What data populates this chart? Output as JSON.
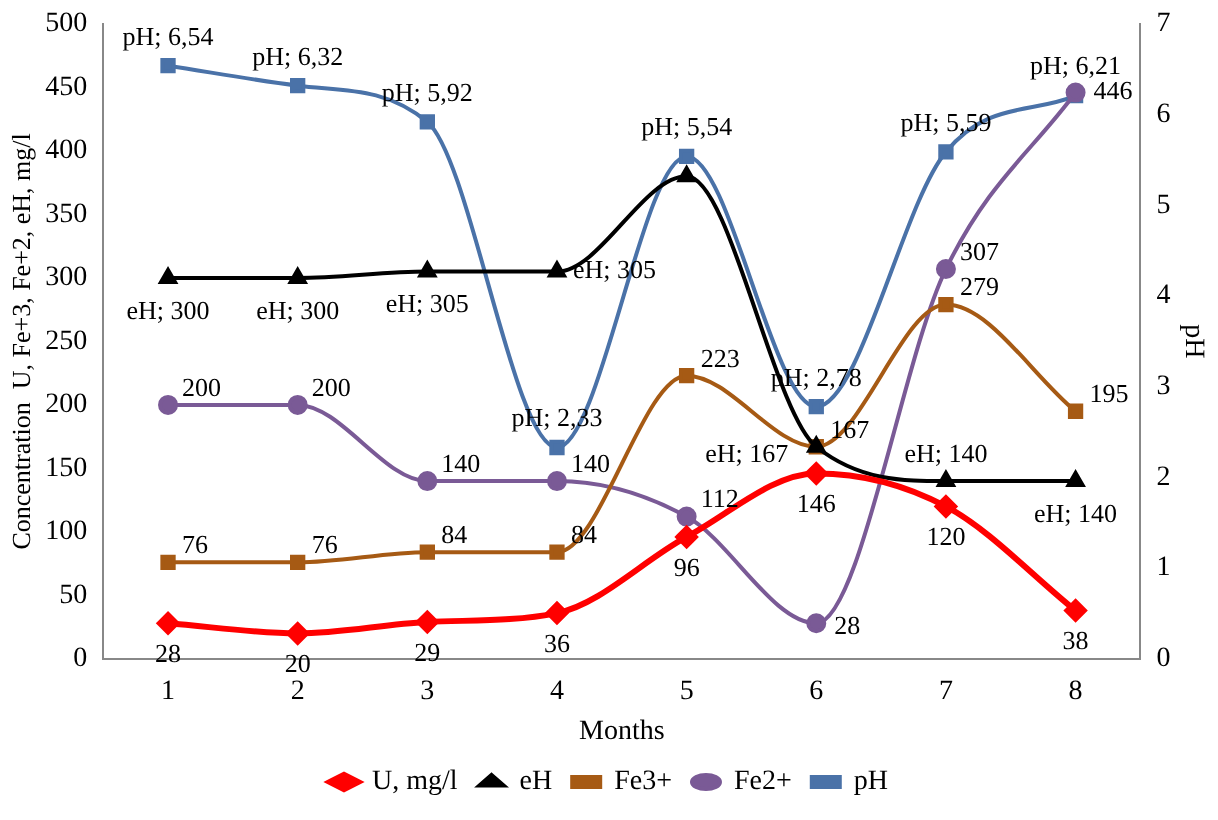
{
  "chart_data": {
    "type": "line",
    "xlabel": "Months",
    "ylabel": "Concentration  U, Fe+3, Fe+2, eH, mg/l",
    "y2label": "pH",
    "categories": [
      "1",
      "2",
      "3",
      "4",
      "5",
      "6",
      "7",
      "8"
    ],
    "ylim": [
      0,
      500
    ],
    "yticks": [
      0,
      50,
      100,
      150,
      200,
      250,
      300,
      350,
      400,
      450,
      500
    ],
    "y2lim": [
      0,
      7
    ],
    "y2ticks": [
      0,
      1,
      2,
      3,
      4,
      5,
      6,
      7
    ],
    "grid": false,
    "legend": "bottom",
    "series": [
      {
        "name": "U, mg/l",
        "color": "#ff0000",
        "marker": "diamond",
        "values": [
          28,
          20,
          29,
          36,
          96,
          146,
          120,
          38
        ],
        "value_labels": [
          "28",
          "20",
          "29",
          "36",
          "96",
          "146",
          "120",
          "38"
        ]
      },
      {
        "name": "eH",
        "color": "#000000",
        "marker": "triangle",
        "values": [
          300,
          300,
          305,
          305,
          380,
          167,
          140,
          140
        ],
        "value_labels": [
          "eH; 300",
          "eH; 300",
          "eH; 305",
          "eH; 305",
          null,
          "eH; 167",
          "eH; 140",
          "eH; 140"
        ]
      },
      {
        "name": "Fe3+",
        "color": "#a65a14",
        "marker": "square",
        "values": [
          76,
          76,
          84,
          84,
          223,
          167,
          279,
          195
        ],
        "value_labels": [
          "76",
          "76",
          "84",
          "84",
          "223",
          "167",
          "279",
          "195"
        ]
      },
      {
        "name": "Fe2+",
        "color": "#7a5a96",
        "marker": "circle",
        "values": [
          200,
          200,
          140,
          140,
          112,
          28,
          307,
          446
        ],
        "value_labels": [
          "200",
          "200",
          "140",
          "140",
          "112",
          "28",
          "307",
          "446"
        ]
      },
      {
        "name": "pH",
        "color": "#4a72a8",
        "marker": "square",
        "axis": "y2",
        "values": [
          6.54,
          6.32,
          5.92,
          2.33,
          5.54,
          2.78,
          5.59,
          6.21
        ],
        "value_labels": [
          "pH; 6,54",
          "pH; 6,32",
          "pH; 5,92",
          "pH; 2,33",
          "pH; 5,54",
          "pH; 2,78",
          "pH; 5,59",
          "pH; 6,21"
        ]
      }
    ]
  }
}
